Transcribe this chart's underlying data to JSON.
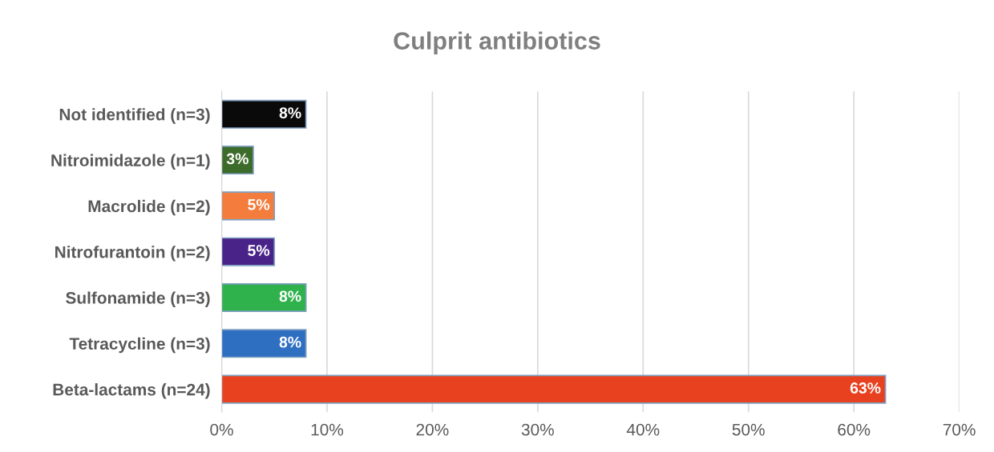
{
  "chart_data": {
    "type": "bar",
    "orientation": "horizontal",
    "title": "Culprit antibiotics",
    "categories": [
      "Not identified (n=3)",
      "Nitroimidazole (n=1)",
      "Macrolide (n=2)",
      "Nitrofurantoin (n=2)",
      "Sulfonamide (n=3)",
      "Tetracycline (n=3)",
      "Beta-lactams (n=24)"
    ],
    "values": [
      8,
      3,
      5,
      5,
      8,
      8,
      63
    ],
    "value_labels": [
      "8%",
      "3%",
      "5%",
      "5%",
      "8%",
      "8%",
      "63%"
    ],
    "colors": [
      "#0a0a0a",
      "#3d6b2a",
      "#f47c3c",
      "#4a2388",
      "#2fb24c",
      "#2f6fc2",
      "#e8411f"
    ],
    "xlim": [
      0,
      70
    ],
    "xticks": [
      {
        "value": 0,
        "label": "0%"
      },
      {
        "value": 10,
        "label": "10%"
      },
      {
        "value": 20,
        "label": "20%"
      },
      {
        "value": 30,
        "label": "30%"
      },
      {
        "value": 40,
        "label": "40%"
      },
      {
        "value": 50,
        "label": "50%"
      },
      {
        "value": 60,
        "label": "60%"
      },
      {
        "value": 70,
        "label": "70%"
      }
    ],
    "grid": "x"
  }
}
